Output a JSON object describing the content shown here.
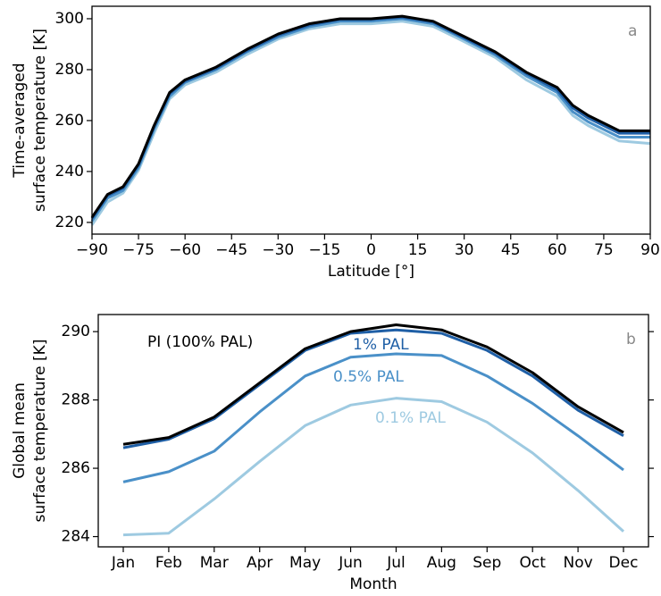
{
  "chart_data": [
    {
      "type": "line",
      "panel": "a",
      "ylabel": [
        "Time-averaged",
        "surface temperature [K]"
      ],
      "xlabel": "Latitude [°]",
      "x": [
        -90,
        -85,
        -80,
        -75,
        -70,
        -65,
        -60,
        -50,
        -40,
        -30,
        -20,
        -10,
        0,
        10,
        20,
        30,
        40,
        50,
        60,
        65,
        70,
        80,
        90
      ],
      "xlim": [
        -90,
        90
      ],
      "xticks": [
        {
          "value": -90,
          "label": "−90"
        },
        {
          "value": -75,
          "label": "−75"
        },
        {
          "value": -60,
          "label": "−60"
        },
        {
          "value": -45,
          "label": "−45"
        },
        {
          "value": -30,
          "label": "−30"
        },
        {
          "value": -15,
          "label": "−15"
        },
        0,
        15,
        30,
        45,
        60,
        75,
        90
      ],
      "ylim": [
        215.4,
        304.9
      ],
      "yticks": [
        220,
        240,
        260,
        280,
        300
      ],
      "series": [
        {
          "color": "#000000",
          "values": [
            222,
            231,
            234,
            243,
            258,
            271,
            276,
            281,
            288,
            294,
            298,
            300,
            300,
            301,
            299,
            293,
            287,
            279,
            273,
            266,
            262,
            256,
            256
          ]
        },
        {
          "color": "#1f5fa6",
          "values": [
            221.5,
            230.5,
            233.5,
            242.5,
            257.5,
            270.5,
            275.5,
            280.5,
            287.5,
            293.5,
            297.5,
            299.7,
            299.7,
            300.6,
            298.6,
            292.5,
            286.5,
            278.5,
            272,
            265,
            261,
            255,
            255
          ]
        },
        {
          "color": "#4a90c8",
          "values": [
            220.5,
            229.5,
            232.5,
            241.5,
            256.5,
            269.5,
            275,
            280,
            287,
            292.8,
            296.8,
            299,
            299,
            300,
            298,
            292,
            285.8,
            277.5,
            271,
            263.5,
            259.5,
            253.5,
            253.5
          ]
        },
        {
          "color": "#9ecae1",
          "values": [
            219,
            228,
            231.5,
            240.5,
            255,
            268.5,
            274,
            279,
            286,
            292,
            296,
            298,
            298,
            299,
            297,
            291,
            284.8,
            276,
            269.5,
            262,
            258,
            252,
            251
          ]
        }
      ]
    },
    {
      "type": "line",
      "panel": "b",
      "ylabel": [
        "Global mean",
        "surface temperature [K]"
      ],
      "xlabel": "Month",
      "categories": [
        "Jan",
        "Feb",
        "Mar",
        "Apr",
        "May",
        "Jun",
        "Jul",
        "Aug",
        "Sep",
        "Oct",
        "Nov",
        "Dec"
      ],
      "ylim": [
        283.7,
        290.5
      ],
      "yticks": [
        284,
        286,
        288,
        290
      ],
      "series": [
        {
          "name": "PI (100% PAL)",
          "color": "#000000",
          "values": [
            286.7,
            286.9,
            287.5,
            288.5,
            289.5,
            290.0,
            290.2,
            290.05,
            289.55,
            288.8,
            287.8,
            287.05
          ]
        },
        {
          "name": "1% PAL",
          "color": "#1f5fa6",
          "values": [
            286.6,
            286.85,
            287.45,
            288.45,
            289.45,
            289.95,
            290.05,
            289.95,
            289.45,
            288.7,
            287.7,
            286.95
          ]
        },
        {
          "name": "0.5% PAL",
          "color": "#4a90c8",
          "values": [
            285.6,
            285.9,
            286.5,
            287.65,
            288.7,
            289.25,
            289.35,
            289.3,
            288.7,
            287.9,
            286.95,
            285.95
          ]
        },
        {
          "name": "0.1% PAL",
          "color": "#9ecae1",
          "values": [
            284.05,
            284.1,
            285.1,
            286.2,
            287.25,
            287.85,
            288.05,
            287.95,
            287.35,
            286.45,
            285.35,
            284.15
          ]
        }
      ]
    }
  ]
}
